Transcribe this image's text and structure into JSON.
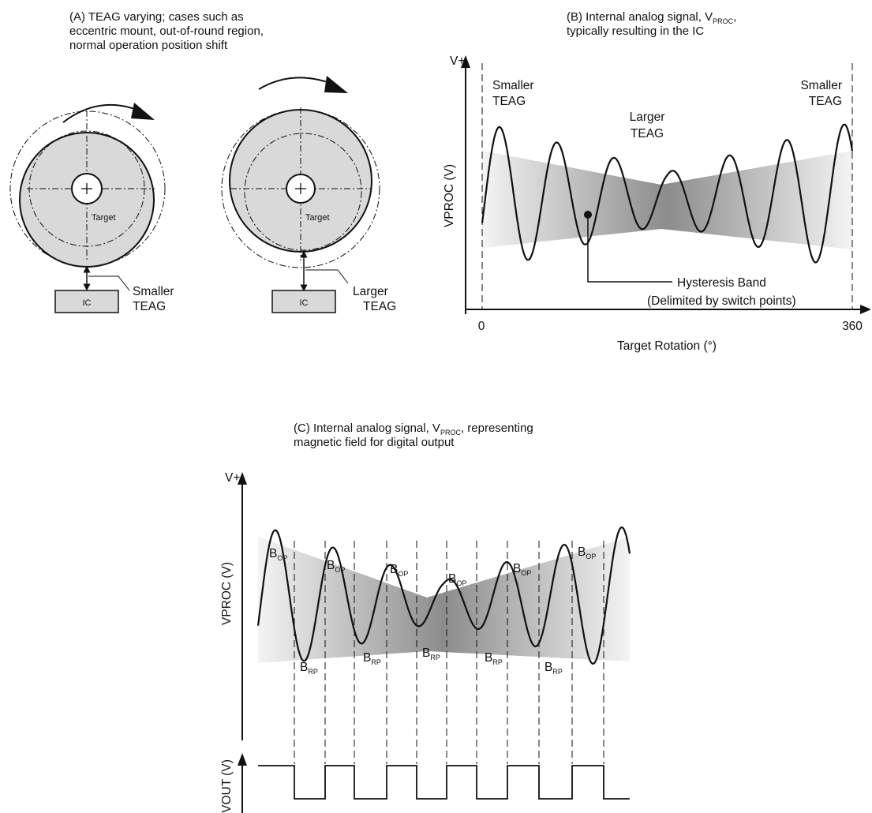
{
  "panel_a": {
    "caption_1": "(A) TEAG varying; cases such as",
    "caption_2": "eccentric mount, out-of-round region,",
    "caption_3": "normal operation position shift",
    "target_label": "Target",
    "ic_label": "IC",
    "smaller_1": "Smaller",
    "smaller_2": "TEAG",
    "larger_1": "Larger",
    "larger_2": "TEAG"
  },
  "panel_b": {
    "caption_1a": "(B) Internal analog signal, V",
    "caption_1sub": "PROC",
    "caption_1b": ",",
    "caption_2": "typically resulting in the IC",
    "v_plus": "V+",
    "ylabel": "VPROC (V)",
    "xlabel": "Target Rotation (°)",
    "tick_0": "0",
    "tick_360": "360",
    "smaller_left_1": "Smaller",
    "smaller_left_2": "TEAG",
    "larger_1": "Larger",
    "larger_2": "TEAG",
    "smaller_right_1": "Smaller",
    "smaller_right_2": "TEAG",
    "hyst_1": "Hysteresis Band",
    "hyst_2": "(Delimited by switch points)"
  },
  "panel_c": {
    "caption_1a": "(C) Internal analog signal, V",
    "caption_1sub": "PROC",
    "caption_1b": ", representing",
    "caption_2": "magnetic field for digital output",
    "v_plus": "V+",
    "ylabel_top": "VPROC (V)",
    "ylabel_bottom": "VOUT (V)",
    "b_main": "B",
    "op_sub": "OP",
    "rp_sub": "RP"
  },
  "colors": {
    "line": "#111111",
    "band_light": "#f2f2f2",
    "band_dark": "#8a8a8a",
    "target_fill": "#d9d9d9"
  }
}
